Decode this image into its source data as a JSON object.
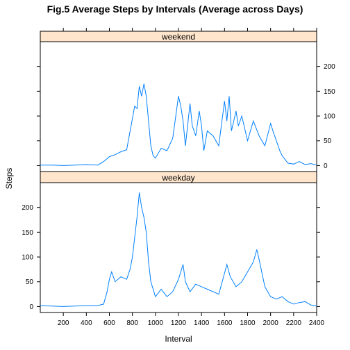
{
  "chart_data": {
    "type": "line",
    "title": "Fig.5 Average Steps by Intervals (Average across Days)",
    "xlabel": "Interval",
    "ylabel": "Steps",
    "xlim": [
      0,
      2400
    ],
    "ylim": [
      -12,
      250
    ],
    "x_ticks": [
      200,
      400,
      600,
      800,
      1000,
      1200,
      1400,
      1600,
      1800,
      2000,
      2200,
      2400
    ],
    "x_tick_labels": [
      "200",
      "400",
      "600",
      "800",
      "1000",
      "1200",
      "1400",
      "1600",
      "1800",
      "2000",
      "2200",
      "2400"
    ],
    "y_ticks": [
      0,
      50,
      100,
      150,
      200
    ],
    "y_tick_labels": [
      "0",
      "50",
      "100",
      "150",
      "200"
    ],
    "line_color": "#0080ff",
    "strip_color": "#ffe5cc",
    "panels": [
      {
        "strip": "weekend",
        "x": [
          0,
          100,
          200,
          300,
          400,
          500,
          550,
          600,
          650,
          700,
          750,
          800,
          820,
          840,
          860,
          880,
          900,
          920,
          940,
          960,
          980,
          1000,
          1050,
          1100,
          1150,
          1200,
          1220,
          1240,
          1260,
          1300,
          1320,
          1350,
          1380,
          1400,
          1420,
          1450,
          1500,
          1550,
          1600,
          1620,
          1640,
          1660,
          1700,
          1720,
          1750,
          1800,
          1850,
          1900,
          1950,
          2000,
          2020,
          2050,
          2080,
          2100,
          2150,
          2200,
          2250,
          2300,
          2350,
          2400
        ],
        "values": [
          1,
          1,
          0,
          1,
          2,
          1,
          8,
          18,
          22,
          28,
          32,
          95,
          120,
          115,
          160,
          140,
          165,
          140,
          90,
          40,
          20,
          15,
          35,
          30,
          55,
          140,
          120,
          90,
          40,
          125,
          80,
          60,
          110,
          80,
          30,
          70,
          60,
          40,
          130,
          90,
          140,
          70,
          110,
          80,
          100,
          50,
          90,
          60,
          40,
          85,
          70,
          50,
          30,
          20,
          5,
          3,
          8,
          2,
          4,
          1
        ],
        "y_axis_side": "right"
      },
      {
        "strip": "weekday",
        "x": [
          0,
          100,
          200,
          300,
          400,
          500,
          550,
          580,
          600,
          620,
          650,
          700,
          750,
          780,
          800,
          820,
          840,
          860,
          880,
          900,
          920,
          940,
          960,
          1000,
          1050,
          1100,
          1150,
          1200,
          1240,
          1260,
          1300,
          1350,
          1400,
          1450,
          1500,
          1550,
          1580,
          1620,
          1650,
          1700,
          1750,
          1800,
          1850,
          1880,
          1900,
          1950,
          2000,
          2050,
          2100,
          2150,
          2200,
          2250,
          2300,
          2350,
          2400
        ],
        "values": [
          2,
          1,
          0,
          1,
          2,
          2,
          5,
          30,
          55,
          70,
          50,
          60,
          55,
          75,
          100,
          140,
          180,
          230,
          200,
          180,
          150,
          90,
          50,
          20,
          35,
          20,
          30,
          55,
          85,
          50,
          30,
          45,
          40,
          35,
          30,
          25,
          50,
          85,
          60,
          40,
          50,
          70,
          90,
          115,
          95,
          40,
          20,
          15,
          20,
          10,
          5,
          8,
          10,
          3,
          1
        ],
        "y_axis_side": "left"
      }
    ]
  }
}
